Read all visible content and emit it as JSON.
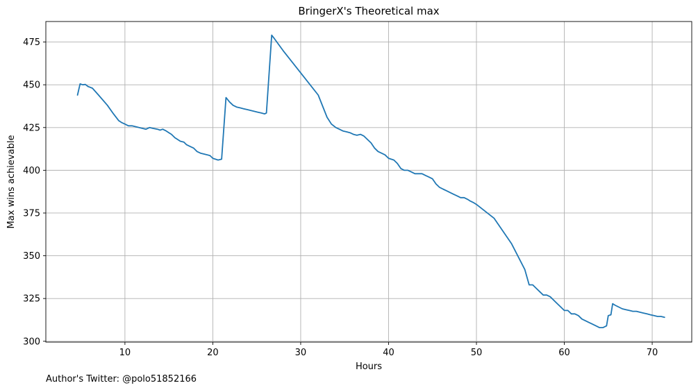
{
  "chart_data": {
    "type": "line",
    "title": "BringerX's Theoretical max",
    "xlabel": "Hours",
    "ylabel": "Max wins achievable",
    "xlim": [
      1.0,
      74.5
    ],
    "ylim": [
      299.5,
      487.0
    ],
    "xticks": [
      10,
      20,
      30,
      40,
      50,
      60,
      70
    ],
    "yticks": [
      300,
      325,
      350,
      375,
      400,
      425,
      450,
      475
    ],
    "grid": true,
    "line_color": "#1f77b4",
    "series": [
      {
        "x": [
          4.6,
          4.9,
          5.2,
          5.5,
          5.8,
          6.3,
          7.0,
          8.0,
          8.7,
          9.3,
          9.6,
          10.0,
          10.4,
          10.8,
          11.2,
          11.6,
          12.0,
          12.4,
          12.8,
          13.2,
          13.7,
          14.0,
          14.3,
          14.7,
          15.0,
          15.3,
          15.7,
          16.0,
          16.3,
          16.7,
          17.0,
          17.4,
          17.8,
          18.2,
          18.6,
          19.0,
          19.4,
          19.7,
          20.0,
          20.3,
          20.6,
          21.0,
          21.5,
          21.9,
          22.3,
          22.7,
          23.1,
          23.5,
          23.9,
          24.3,
          24.7,
          25.1,
          25.5,
          25.9,
          26.1,
          26.7,
          27.0,
          28.0,
          30.0,
          32.0,
          33.0,
          33.5,
          34.0,
          34.4,
          34.8,
          35.2,
          35.6,
          36.0,
          36.4,
          36.8,
          37.2,
          37.6,
          38.0,
          38.4,
          38.8,
          39.2,
          39.6,
          40.0,
          40.3,
          40.6,
          41.0,
          41.4,
          41.8,
          42.2,
          42.6,
          43.0,
          43.4,
          43.8,
          44.2,
          44.6,
          45.0,
          45.4,
          45.8,
          46.2,
          46.6,
          47.0,
          47.4,
          47.8,
          48.2,
          48.6,
          49.0,
          49.3,
          49.7,
          50.0,
          52.0,
          54.0,
          55.5,
          56.0,
          56.4,
          56.8,
          57.2,
          57.6,
          58.0,
          58.4,
          58.8,
          59.2,
          59.6,
          60.0,
          60.4,
          60.8,
          61.2,
          61.6,
          62.0,
          62.4,
          62.8,
          63.2,
          63.6,
          64.0,
          64.4,
          64.8,
          65.0,
          65.3,
          65.5,
          65.8,
          66.2,
          66.6,
          67.0,
          67.4,
          67.8,
          68.2,
          68.6,
          69.0,
          69.4,
          69.8,
          70.2,
          70.6,
          71.0,
          71.4
        ],
        "y": [
          444,
          450.5,
          450,
          450.2,
          449,
          448,
          444,
          438,
          433,
          429,
          428,
          427,
          426,
          426,
          425.5,
          425,
          424.5,
          424,
          425,
          424.5,
          424,
          423.5,
          424,
          423,
          422,
          421,
          419,
          418,
          417,
          416.5,
          415,
          414,
          413,
          411,
          410,
          409.5,
          409,
          408.5,
          407,
          406.5,
          406,
          406.5,
          442.5,
          440,
          438,
          437,
          436.5,
          436,
          435.5,
          435,
          434.5,
          434,
          433.5,
          433,
          433.5,
          479,
          477,
          470,
          457,
          444,
          431,
          427,
          425,
          424,
          423,
          422.5,
          422,
          421,
          420.5,
          421,
          420,
          418,
          416,
          413,
          411,
          410,
          409,
          407,
          406.5,
          406,
          404,
          401,
          400,
          400,
          399,
          398,
          398,
          398,
          397,
          396,
          395,
          392,
          390,
          389,
          388,
          387,
          386,
          385,
          384,
          384,
          383,
          382,
          381,
          380,
          372,
          357,
          342,
          333,
          333,
          331,
          329,
          327,
          327,
          326,
          324,
          322,
          320,
          318,
          318,
          316,
          316,
          315,
          313,
          312,
          311,
          310,
          309,
          308,
          308,
          309,
          315,
          315.5,
          322,
          321,
          320,
          319,
          318.5,
          318,
          317.5,
          317.5,
          317,
          316.5,
          316,
          315.5,
          315,
          314.5,
          314.5,
          314
        ]
      }
    ]
  },
  "footnote": "Author's Twitter: @polo51852166"
}
